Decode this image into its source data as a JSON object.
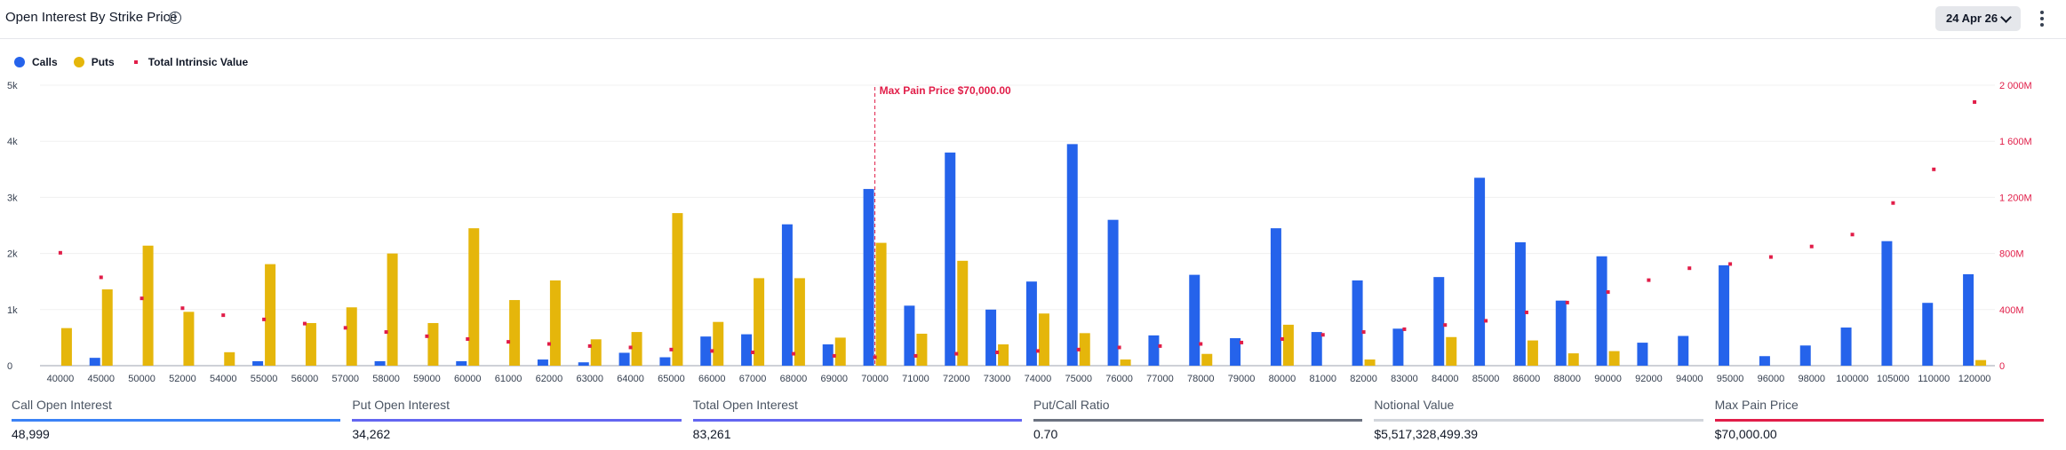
{
  "header": {
    "title": "Open Interest By Strike Price",
    "date_label": "24 Apr 26",
    "info_icon": "info-icon",
    "menu_icon": "kebab-menu-icon"
  },
  "legend": {
    "calls": "Calls",
    "puts": "Puts",
    "intrinsic": "Total Intrinsic Value"
  },
  "colors": {
    "calls": "#2563eb",
    "puts": "#e5b60b",
    "intrinsic": "#e11d48",
    "grid": "#f0f0f0"
  },
  "stats": [
    {
      "label": "Call Open Interest",
      "value": "48,999",
      "color": "#3b82f6"
    },
    {
      "label": "Put Open Interest",
      "value": "34,262",
      "color": "#6366f1"
    },
    {
      "label": "Total Open Interest",
      "value": "83,261",
      "color": "#6366f1"
    },
    {
      "label": "Put/Call Ratio",
      "value": "0.70",
      "color": "#6b7280"
    },
    {
      "label": "Notional Value",
      "value": "$5,517,328,499.39",
      "color": "#d1d5db"
    },
    {
      "label": "Max Pain Price",
      "value": "$70,000.00",
      "color": "#e11d48"
    }
  ],
  "chart_data": {
    "type": "bar",
    "categories": [
      "40000",
      "45000",
      "50000",
      "52000",
      "54000",
      "55000",
      "56000",
      "57000",
      "58000",
      "59000",
      "60000",
      "61000",
      "62000",
      "63000",
      "64000",
      "65000",
      "66000",
      "67000",
      "68000",
      "69000",
      "70000",
      "71000",
      "72000",
      "73000",
      "74000",
      "75000",
      "76000",
      "77000",
      "78000",
      "79000",
      "80000",
      "81000",
      "82000",
      "83000",
      "84000",
      "85000",
      "86000",
      "88000",
      "90000",
      "92000",
      "94000",
      "95000",
      "96000",
      "98000",
      "100000",
      "105000",
      "110000",
      "120000"
    ],
    "series": [
      {
        "name": "Calls",
        "axis": "left",
        "values": [
          0,
          140,
          0,
          0,
          0,
          80,
          0,
          0,
          80,
          0,
          80,
          0,
          110,
          60,
          230,
          150,
          520,
          560,
          2520,
          380,
          3150,
          1070,
          3800,
          1000,
          1500,
          3950,
          2600,
          540,
          1620,
          490,
          2450,
          600,
          1520,
          660,
          1580,
          3350,
          2200,
          1160,
          1950,
          410,
          530,
          1790,
          170,
          360,
          680,
          2220,
          1120,
          1630
        ]
      },
      {
        "name": "Puts",
        "axis": "left",
        "values": [
          670,
          1360,
          2140,
          960,
          240,
          1810,
          760,
          1040,
          2000,
          760,
          2450,
          1170,
          1520,
          470,
          600,
          2720,
          780,
          1560,
          1560,
          500,
          2190,
          570,
          1870,
          380,
          930,
          580,
          110,
          0,
          210,
          0,
          730,
          0,
          110,
          0,
          510,
          0,
          450,
          220,
          260,
          0,
          0,
          0,
          0,
          0,
          0,
          0,
          0,
          100
        ]
      },
      {
        "name": "Total Intrinsic Value",
        "axis": "right",
        "type": "scatter",
        "values": [
          805,
          630,
          480,
          410,
          360,
          330,
          300,
          270,
          240,
          210,
          190,
          170,
          155,
          140,
          130,
          115,
          105,
          95,
          85,
          70,
          60,
          70,
          85,
          95,
          105,
          115,
          130,
          140,
          155,
          165,
          190,
          220,
          240,
          260,
          290,
          320,
          380,
          450,
          525,
          610,
          695,
          725,
          775,
          850,
          935,
          1160,
          1400,
          1880
        ]
      }
    ],
    "yLeft": {
      "min": 0,
      "max": 5000,
      "ticks": [
        "0",
        "1k",
        "2k",
        "3k",
        "4k",
        "5k"
      ],
      "tick_values": [
        0,
        1000,
        2000,
        3000,
        4000,
        5000
      ]
    },
    "yRight": {
      "min": 0,
      "max": 2000,
      "ticks": [
        "0",
        "400M",
        "800M",
        "1 200M",
        "1 600M",
        "2 000M"
      ],
      "tick_values": [
        0,
        400,
        800,
        1200,
        1600,
        2000
      ]
    },
    "annotation": {
      "label": "Max Pain Price $70,000.00",
      "category": "70000"
    },
    "legend_position": "top-left",
    "grid": true
  }
}
